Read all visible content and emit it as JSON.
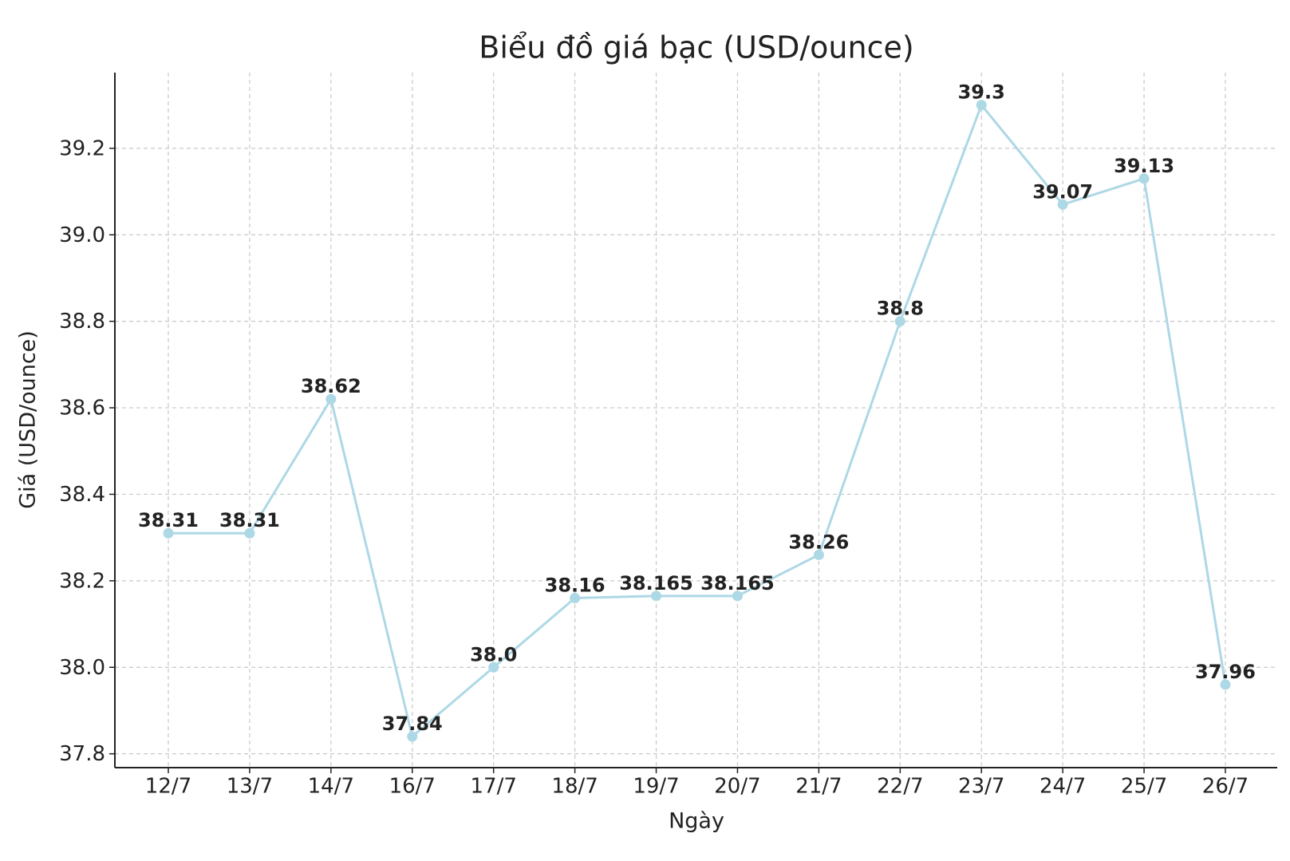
{
  "chart_data": {
    "type": "line",
    "title": "Biểu đồ giá bạc (USD/ounce)",
    "x_label": "Ngày",
    "y_label": "Giá (USD/ounce)",
    "categories": [
      "12/7",
      "13/7",
      "14/7",
      "16/7",
      "17/7",
      "18/7",
      "19/7",
      "20/7",
      "21/7",
      "22/7",
      "23/7",
      "24/7",
      "25/7",
      "26/7"
    ],
    "values": [
      38.31,
      38.31,
      38.62,
      37.84,
      38.0,
      38.16,
      38.165,
      38.165,
      38.26,
      38.8,
      39.3,
      39.07,
      39.13,
      37.96
    ],
    "value_labels": [
      "38.31",
      "38.31",
      "38.62",
      "37.84",
      "38.0",
      "38.16",
      "38.165",
      "38.165",
      "38.26",
      "38.8",
      "39.3",
      "39.07",
      "39.13",
      "37.96"
    ],
    "color": "#add8e6",
    "ylim": [
      37.768,
      39.375
    ],
    "yticks": [
      37.8,
      {
        "value": 38.0,
        "label": "38.0"
      },
      38.2,
      38.4,
      38.6,
      38.8,
      {
        "value": 39.0,
        "label": "39.0"
      },
      39.2
    ],
    "grid": true
  }
}
